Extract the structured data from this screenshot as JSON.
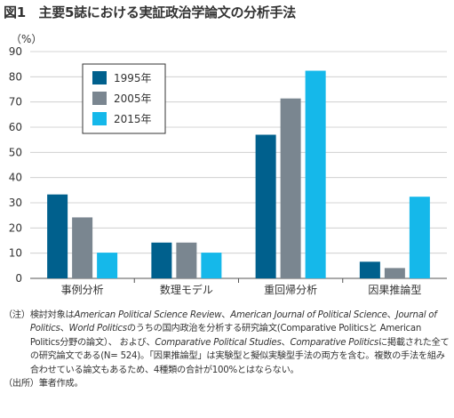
{
  "figure": {
    "title": "図1　主要5誌における実証政治学論文の分析手法"
  },
  "chart_data": {
    "type": "bar",
    "categories": [
      "事例分析",
      "数理モデル",
      "重回帰分析",
      "因果推論型"
    ],
    "series": [
      {
        "name": "1995年",
        "values": [
          33.3,
          14.2,
          57.0,
          6.6
        ],
        "color": "#00608d"
      },
      {
        "name": "2005年",
        "values": [
          24.2,
          14.2,
          71.4,
          4.1
        ],
        "color": "#7a8690"
      },
      {
        "name": "2015年",
        "values": [
          10.2,
          10.2,
          82.4,
          32.4
        ],
        "color": "#15b8ea"
      }
    ],
    "ylabel": "（%）",
    "ylim": [
      0,
      90
    ],
    "yticks": [
      0,
      10,
      20,
      30,
      40,
      50,
      60,
      70,
      80,
      90
    ],
    "grid": true,
    "legend": "top-left"
  },
  "notes": {
    "note_label": "（注）",
    "note_parts": [
      {
        "text": "検討対象は",
        "italic": false
      },
      {
        "text": "American Political Science Review",
        "italic": true
      },
      {
        "text": "、",
        "italic": false
      },
      {
        "text": "American Journal of Political Science",
        "italic": true
      },
      {
        "text": "、",
        "italic": false
      },
      {
        "text": "Journal of Politics",
        "italic": true
      },
      {
        "text": "、",
        "italic": false
      },
      {
        "text": "World Politics",
        "italic": true
      },
      {
        "text": "のうちの国内政治を分析する研究論文(Comparative Politicsと American Politics分野の論文）、 および、",
        "italic": false
      },
      {
        "text": "Comparative Political Studies",
        "italic": true
      },
      {
        "text": "、",
        "italic": false
      },
      {
        "text": "Comparative Politics",
        "italic": true
      },
      {
        "text": "に掲載された全ての研究論文である(N= 524)。「因果推論型」は実験型と擬似実験型手法の両方を含む。複数の手法を組み合わせている論文もあるため、4種類の合計が100%とはならない。",
        "italic": false
      }
    ],
    "source_label": "（出所）",
    "source_text": "筆者作成。"
  }
}
